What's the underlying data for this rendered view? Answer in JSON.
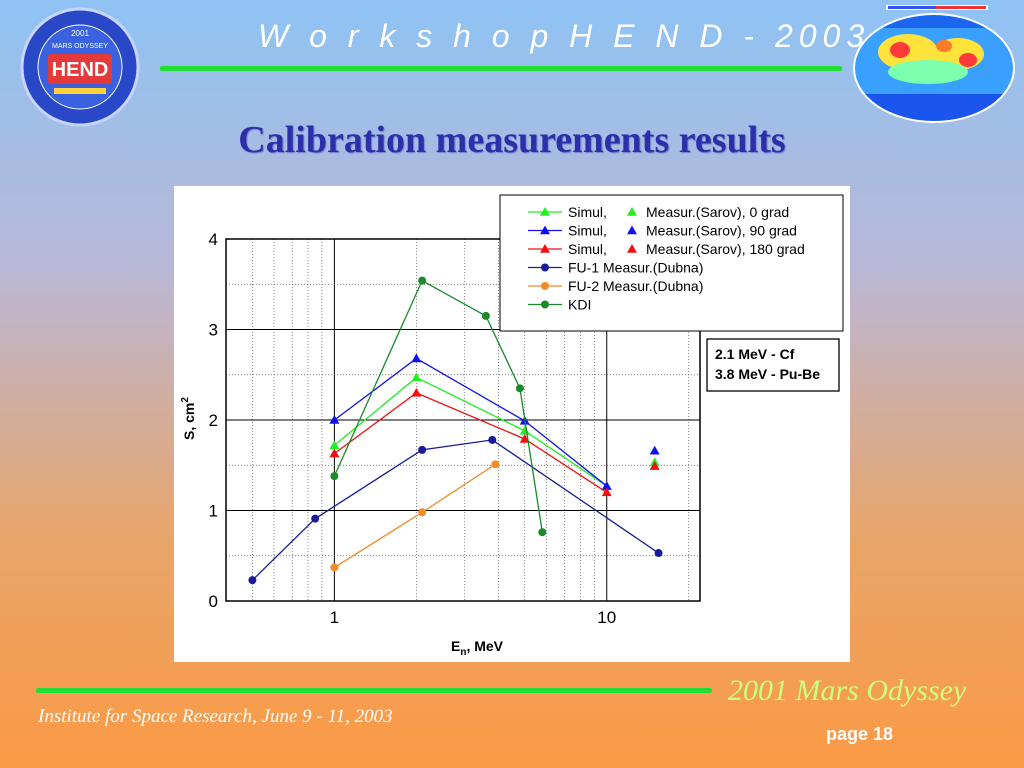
{
  "header": {
    "title": "W o r k s h o p   H E N D - 2003"
  },
  "slide": {
    "title": "Calibration measurements results"
  },
  "logo": {
    "line1": "2001",
    "line2": "MARS ODYSSEY",
    "line3": "HEND"
  },
  "footer": {
    "brand": "2001 Mars Odyssey",
    "institute": "Institute for Space Research, June 9 - 11, 2003",
    "page": "page 18"
  },
  "colors": {
    "accent_green": "#22dd33",
    "title_blue": "#2b30a8"
  },
  "chart_data": {
    "type": "line",
    "xscale": "log",
    "xlim": [
      0.4,
      22
    ],
    "ylim": [
      0,
      4
    ],
    "xticks": [
      "1",
      "10"
    ],
    "yticks": [
      "0",
      "1",
      "2",
      "3",
      "4"
    ],
    "xlabel": "E",
    "xlabel_sub": "n",
    "xlabel_unit": ", MeV",
    "ylabel": "S, cm",
    "ylabel_sup": "2",
    "grid": true,
    "legend_position": "top-right",
    "series": [
      {
        "name": "Simul,",
        "legend_extra": "Measur.(Sarov), 0 grad",
        "color": "#22ee22",
        "marker": "triangle",
        "x": [
          1,
          2,
          5,
          10
        ],
        "y": [
          1.72,
          2.47,
          1.88,
          1.27
        ],
        "measured": {
          "x": [
            15
          ],
          "y": [
            1.53
          ]
        }
      },
      {
        "name": "Simul,",
        "legend_extra": "Measur.(Sarov), 90 grad",
        "color": "#1111ee",
        "marker": "triangle",
        "x": [
          1,
          2,
          5,
          10
        ],
        "y": [
          2.0,
          2.68,
          1.99,
          1.27
        ],
        "measured": {
          "x": [
            15
          ],
          "y": [
            1.66
          ]
        }
      },
      {
        "name": "Simul,",
        "legend_extra": "Measur.(Sarov), 180 grad",
        "color": "#ee1111",
        "marker": "triangle",
        "x": [
          1,
          2,
          5,
          10
        ],
        "y": [
          1.63,
          2.3,
          1.79,
          1.2
        ],
        "measured": {
          "x": [
            15
          ],
          "y": [
            1.49
          ]
        }
      },
      {
        "name": "FU-1 Measur.(Dubna)",
        "color": "#1a1a99",
        "marker": "circle",
        "x": [
          0.5,
          0.85,
          2.1,
          3.8,
          15.5
        ],
        "y": [
          0.23,
          0.91,
          1.67,
          1.78,
          0.53
        ]
      },
      {
        "name": "FU-2 Measur.(Dubna)",
        "color": "#f28c28",
        "marker": "circle",
        "x": [
          1,
          2.1,
          3.9
        ],
        "y": [
          0.37,
          0.98,
          1.51
        ]
      },
      {
        "name": "KDI",
        "color": "#1a8a2a",
        "marker": "circle",
        "x": [
          1,
          2.1,
          3.6,
          4.8,
          5.8
        ],
        "y": [
          1.38,
          3.54,
          3.15,
          2.35,
          0.76
        ]
      }
    ],
    "annotation": {
      "lines": [
        "2.1 MeV - Cf",
        "3.8 MeV - Pu-Be"
      ]
    }
  }
}
